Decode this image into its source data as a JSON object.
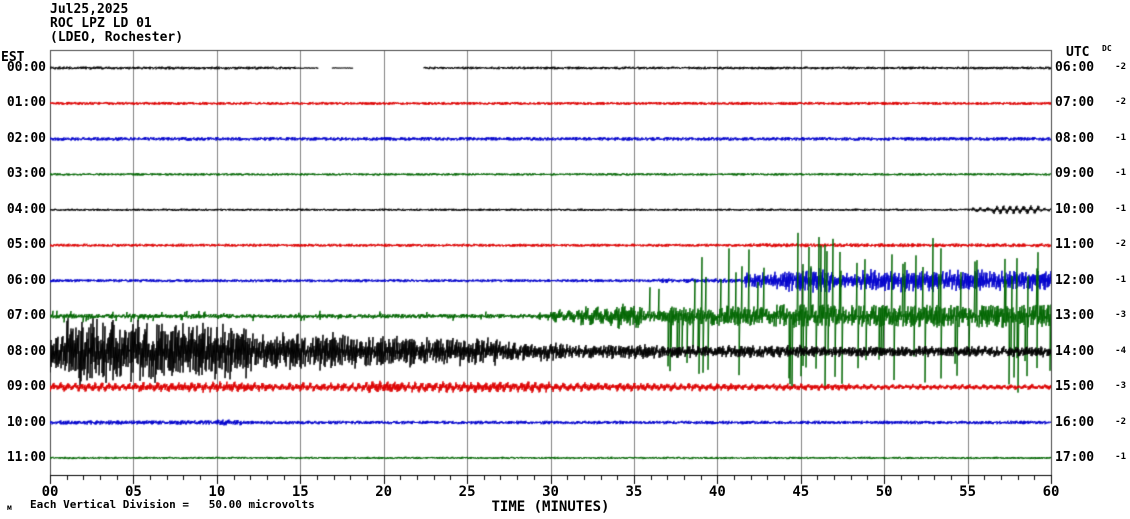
{
  "header": {
    "date": "Jul25,2025",
    "station": "ROC LPZ LD 01",
    "network": "(LDEO, Rochester)"
  },
  "left_axis": {
    "tz": "EST"
  },
  "right_axis": {
    "tz": "UTC",
    "dc_header": "DC"
  },
  "x_axis": {
    "title": "TIME (MINUTES)",
    "major_tick_labels": [
      "00",
      "05",
      "10",
      "15",
      "20",
      "25",
      "30",
      "35",
      "40",
      "45",
      "50",
      "55",
      "60"
    ],
    "minor_tick_every_minutes": 1,
    "major_tick_every_minutes": 5
  },
  "footer": {
    "marker": "м",
    "scale_note": "Each Vertical Division =   50.00 microvolts"
  },
  "colors": {
    "black": "#000000",
    "red": "#dd0000",
    "blue": "#0000cc",
    "green": "#006600",
    "grid": "#808080",
    "frame": "#444444",
    "axis": "#000000"
  },
  "chart_data": {
    "type": "line",
    "kind": "seismogram-helicorder",
    "x_unit": "minutes",
    "x_range": [
      0,
      60
    ],
    "rows_count": 12,
    "amplitude_units": "px (1 vertical division = 50.00 microvolts)",
    "rows": [
      {
        "est_label": "00:00",
        "utc_label": "06:00",
        "dc": "-2",
        "color": "black",
        "segments": [
          {
            "m0": 0,
            "m1": 14.7,
            "a": 1.5
          },
          {
            "m0": 14.7,
            "m1": 16.1,
            "a": 0.6
          },
          {
            "m0": 16.1,
            "m1": 16.9,
            "gap": true
          },
          {
            "m0": 16.9,
            "m1": 18.2,
            "a": 0.5
          },
          {
            "m0": 18.2,
            "m1": 22.4,
            "gap": true
          },
          {
            "m0": 22.4,
            "m1": 60,
            "a": 1.4
          }
        ]
      },
      {
        "est_label": "01:00",
        "utc_label": "07:00",
        "dc": "-2",
        "color": "red",
        "segments": [
          {
            "m0": 0,
            "m1": 60,
            "a": 1.6
          }
        ]
      },
      {
        "est_label": "02:00",
        "utc_label": "08:00",
        "dc": "-1",
        "color": "blue",
        "segments": [
          {
            "m0": 0,
            "m1": 60,
            "a": 1.9
          }
        ]
      },
      {
        "est_label": "03:00",
        "utc_label": "09:00",
        "dc": "-1",
        "color": "green",
        "segments": [
          {
            "m0": 0,
            "m1": 60,
            "a": 1.3
          }
        ]
      },
      {
        "est_label": "04:00",
        "utc_label": "10:00",
        "dc": "-1",
        "color": "black",
        "segments": [
          {
            "m0": 0,
            "m1": 55.3,
            "a": 1.2
          },
          {
            "m0": 55.3,
            "m1": 56.5,
            "a": 2.5,
            "w": 0.6,
            "p": 8
          },
          {
            "m0": 56.5,
            "m1": 59.3,
            "a": 4.5,
            "w": 0.85,
            "p": 7
          },
          {
            "m0": 59.3,
            "m1": 60,
            "a": 2.0,
            "w": 0.6,
            "p": 7
          }
        ]
      },
      {
        "est_label": "05:00",
        "utc_label": "11:00",
        "dc": "-2",
        "color": "red",
        "segments": [
          {
            "m0": 0,
            "m1": 42,
            "a": 1.6
          },
          {
            "m0": 42,
            "m1": 60,
            "a": 2.0
          }
        ]
      },
      {
        "est_label": "06:00",
        "utc_label": "12:00",
        "dc": "-1",
        "color": "blue",
        "segments": [
          {
            "m0": 0,
            "m1": 36.5,
            "a": 1.6
          },
          {
            "m0": 36.5,
            "m1": 41.6,
            "a": 2.3
          },
          {
            "m0": 41.6,
            "m1": 44,
            "a": 9,
            "w": 0.3,
            "p": 4
          },
          {
            "m0": 44,
            "m1": 47,
            "a": 13,
            "w": 0.3,
            "p": 4
          },
          {
            "m0": 47,
            "m1": 48.6,
            "a": 8,
            "w": 0.3,
            "p": 4
          },
          {
            "m0": 48.6,
            "m1": 56,
            "a": 12,
            "w": 0.3,
            "p": 4
          },
          {
            "m0": 56,
            "m1": 60,
            "a": 11,
            "w": 0.3,
            "p": 4
          }
        ]
      },
      {
        "est_label": "07:00",
        "utc_label": "13:00",
        "dc": "-3",
        "color": "green",
        "segments": [
          {
            "m0": 0,
            "m1": 6,
            "a": 7,
            "sp": 0.05,
            "bs": 0.35
          },
          {
            "m0": 6,
            "m1": 20,
            "a": 5.5,
            "sp": 0.04,
            "bs": 0.4
          },
          {
            "m0": 20,
            "m1": 30,
            "a": 5,
            "sp": 0.03,
            "bs": 0.45
          },
          {
            "m0": 30,
            "m1": 31.8,
            "a": 7,
            "w": 0.4,
            "p": 9
          },
          {
            "m0": 31.8,
            "m1": 34,
            "a": 12,
            "w": 0.5,
            "p": 10
          },
          {
            "m0": 34,
            "m1": 35.5,
            "a": 15,
            "w": 0.4,
            "p": 9
          },
          {
            "m0": 35.5,
            "m1": 37,
            "a": 30,
            "sp": 0.1,
            "bs": 0.2
          },
          {
            "m0": 37,
            "m1": 40,
            "a": 60,
            "sp": 0.11,
            "bs": 0.16
          },
          {
            "m0": 40,
            "m1": 43,
            "a": 72,
            "sp": 0.11,
            "bs": 0.15
          },
          {
            "m0": 43,
            "m1": 47,
            "a": 85,
            "sp": 0.12,
            "bs": 0.14
          },
          {
            "m0": 47,
            "m1": 52,
            "a": 75,
            "sp": 0.11,
            "bs": 0.15
          },
          {
            "m0": 52,
            "m1": 57,
            "a": 82,
            "sp": 0.12,
            "bs": 0.14
          },
          {
            "m0": 57,
            "m1": 60,
            "a": 78,
            "sp": 0.12,
            "bs": 0.15
          }
        ]
      },
      {
        "est_label": "08:00",
        "utc_label": "14:00",
        "dc": "-4",
        "color": "black",
        "segments": [
          {
            "m0": 0,
            "m1": 1,
            "a": 22,
            "w": 0.2,
            "p": 5
          },
          {
            "m0": 1,
            "m1": 4,
            "a": 36,
            "w": 0.2,
            "p": 5
          },
          {
            "m0": 4,
            "m1": 8,
            "a": 33,
            "w": 0.2,
            "p": 5
          },
          {
            "m0": 8,
            "m1": 12,
            "a": 30,
            "w": 0.2,
            "p": 5
          },
          {
            "m0": 12,
            "m1": 18,
            "a": 20,
            "w": 0.2,
            "p": 5
          },
          {
            "m0": 18,
            "m1": 22,
            "a": 17,
            "w": 0.2,
            "p": 5
          },
          {
            "m0": 22,
            "m1": 27,
            "a": 15,
            "w": 0.2,
            "p": 5
          },
          {
            "m0": 27,
            "m1": 31,
            "a": 10,
            "w": 0.25,
            "p": 6
          },
          {
            "m0": 31,
            "m1": 36,
            "a": 8,
            "w": 0.25,
            "p": 6
          },
          {
            "m0": 36,
            "m1": 45,
            "a": 7,
            "w": 0.25,
            "p": 6
          },
          {
            "m0": 45,
            "m1": 52,
            "a": 6,
            "w": 0.25,
            "p": 6
          },
          {
            "m0": 52,
            "m1": 60,
            "a": 6,
            "w": 0.25,
            "p": 6
          }
        ]
      },
      {
        "est_label": "09:00",
        "utc_label": "15:00",
        "dc": "-3",
        "color": "red",
        "segments": [
          {
            "m0": 0,
            "m1": 5,
            "a": 5,
            "w": 0.5,
            "p": 7
          },
          {
            "m0": 5,
            "m1": 12,
            "a": 6,
            "w": 0.5,
            "p": 7
          },
          {
            "m0": 12,
            "m1": 19,
            "a": 5,
            "w": 0.5,
            "p": 7
          },
          {
            "m0": 19,
            "m1": 21,
            "a": 7,
            "w": 0.5,
            "p": 7
          },
          {
            "m0": 21,
            "m1": 30,
            "a": 6,
            "w": 0.5,
            "p": 7
          },
          {
            "m0": 30,
            "m1": 36,
            "a": 5,
            "w": 0.5,
            "p": 7
          },
          {
            "m0": 36,
            "m1": 42,
            "a": 4.5,
            "w": 0.5,
            "p": 7
          },
          {
            "m0": 42,
            "m1": 48,
            "a": 4,
            "w": 0.5,
            "p": 7
          },
          {
            "m0": 48,
            "m1": 60,
            "a": 3.2,
            "w": 0.5,
            "p": 7
          }
        ]
      },
      {
        "est_label": "10:00",
        "utc_label": "16:00",
        "dc": "-2",
        "color": "blue",
        "segments": [
          {
            "m0": 0,
            "m1": 10,
            "a": 2.2
          },
          {
            "m0": 10,
            "m1": 11.5,
            "a": 3
          },
          {
            "m0": 11.5,
            "m1": 60,
            "a": 1.8
          }
        ]
      },
      {
        "est_label": "11:00",
        "utc_label": "17:00",
        "dc": "-1",
        "color": "green",
        "segments": [
          {
            "m0": 0,
            "m1": 60,
            "a": 1.2
          }
        ]
      }
    ]
  }
}
